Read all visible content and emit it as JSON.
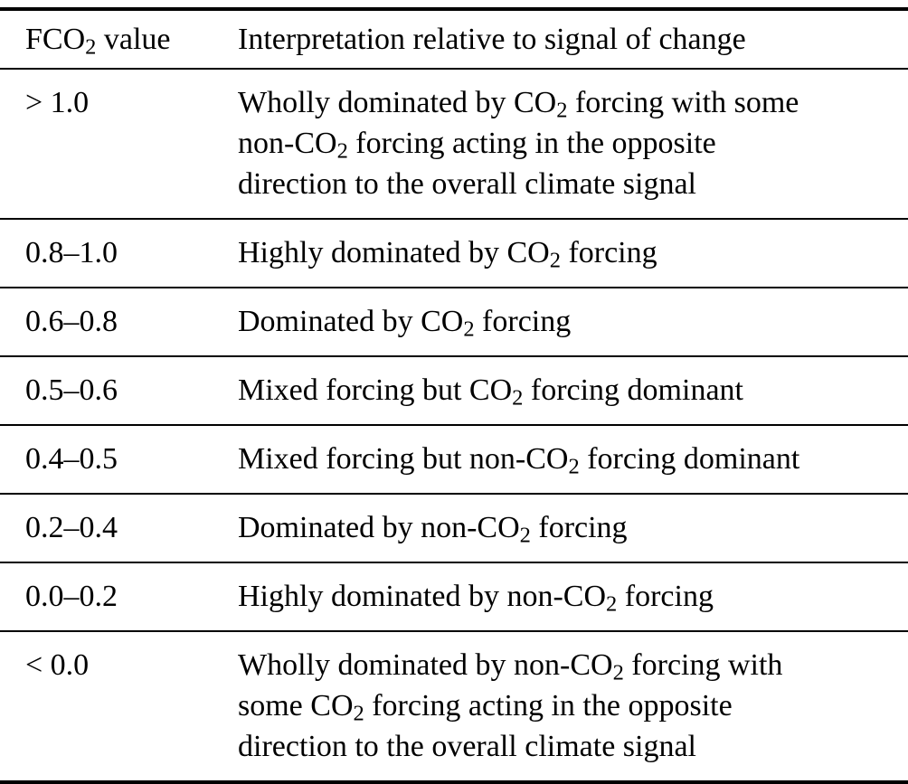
{
  "table": {
    "header": {
      "value_label": "FCO₂ value",
      "interpretation_label": "Interpretation relative to signal of change"
    },
    "rows": [
      {
        "value": "> 1.0",
        "interpretation": [
          "Wholly dominated by CO₂ forcing with some",
          "non-CO₂ forcing acting in the opposite",
          "direction to the overall climate signal"
        ]
      },
      {
        "value": "0.8–1.0",
        "interpretation": [
          "Highly dominated by CO₂ forcing"
        ]
      },
      {
        "value": "0.6–0.8",
        "interpretation": [
          "Dominated by CO₂ forcing"
        ]
      },
      {
        "value": "0.5–0.6",
        "interpretation": [
          "Mixed forcing but CO₂ forcing dominant"
        ]
      },
      {
        "value": "0.4–0.5",
        "interpretation": [
          "Mixed forcing but non-CO₂ forcing dominant"
        ]
      },
      {
        "value": "0.2–0.4",
        "interpretation": [
          "Dominated by non-CO₂ forcing"
        ]
      },
      {
        "value": "0.0–0.2",
        "interpretation": [
          "Highly dominated by non-CO₂ forcing"
        ]
      },
      {
        "value": "< 0.0",
        "interpretation": [
          "Wholly dominated by non-CO₂ forcing with",
          "some CO₂ forcing acting in the opposite",
          "direction to the overall climate signal"
        ]
      }
    ]
  }
}
